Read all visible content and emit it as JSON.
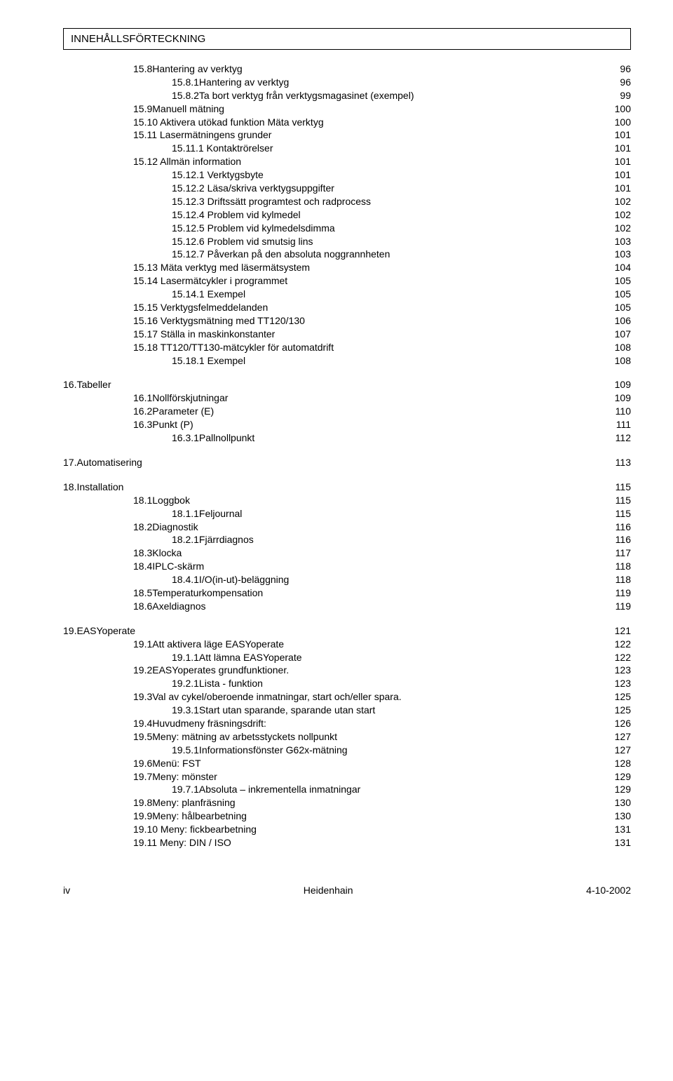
{
  "header": "INNEHÅLLSFÖRTECKNING",
  "entries": [
    {
      "indent": "ind1",
      "text": "15.8Hantering av verktyg",
      "page": "96"
    },
    {
      "indent": "ind2",
      "text": "15.8.1Hantering av verktyg",
      "page": "96"
    },
    {
      "indent": "ind2",
      "text": "15.8.2Ta bort verktyg från verktygsmagasinet (exempel)",
      "page": "99"
    },
    {
      "indent": "ind1",
      "text": "15.9Manuell mätning",
      "page": "100"
    },
    {
      "indent": "ind1",
      "text": "15.10        Aktivera utökad funktion Mäta verktyg",
      "page": "100"
    },
    {
      "indent": "ind1",
      "text": "15.11        Lasermätningens grunder",
      "page": "101"
    },
    {
      "indent": "ind2",
      "text": "15.11.1     Kontaktrörelser",
      "page": "101"
    },
    {
      "indent": "ind1",
      "text": "15.12        Allmän information",
      "page": "101"
    },
    {
      "indent": "ind2",
      "text": "15.12.1     Verktygsbyte",
      "page": "101"
    },
    {
      "indent": "ind2",
      "text": "15.12.2     Läsa/skriva verktygsuppgifter",
      "page": "101"
    },
    {
      "indent": "ind2",
      "text": "15.12.3     Driftssätt programtest och radprocess",
      "page": "102"
    },
    {
      "indent": "ind2",
      "text": "15.12.4     Problem vid kylmedel",
      "page": "102"
    },
    {
      "indent": "ind2",
      "text": "15.12.5     Problem vid kylmedelsdimma",
      "page": "102"
    },
    {
      "indent": "ind2",
      "text": "15.12.6     Problem vid smutsig lins",
      "page": "103"
    },
    {
      "indent": "ind2",
      "text": "15.12.7     Påverkan på den absoluta noggrannheten",
      "page": "103"
    },
    {
      "indent": "ind1",
      "text": "15.13        Mäta verktyg med  läsermätsystem",
      "page": "104"
    },
    {
      "indent": "ind1",
      "text": "15.14        Lasermätcykler i programmet",
      "page": "105"
    },
    {
      "indent": "ind2",
      "text": "15.14.1     Exempel",
      "page": "105"
    },
    {
      "indent": "ind1",
      "text": "15.15        Verktygsfelmeddelanden",
      "page": "105"
    },
    {
      "indent": "ind1",
      "text": "15.16        Verktygsmätning med TT120/130",
      "page": "106"
    },
    {
      "indent": "ind1",
      "text": "15.17        Ställa in maskinkonstanter",
      "page": "107"
    },
    {
      "indent": "ind1",
      "text": "15.18        TT120/TT130-mätcykler för automatdrift",
      "page": "108"
    },
    {
      "indent": "ind2",
      "text": "15.18.1     Exempel",
      "page": "108"
    },
    {
      "indent": "section",
      "text": "16.Tabeller",
      "page": "109"
    },
    {
      "indent": "ind1",
      "text": "16.1Nollförskjutningar",
      "page": "109"
    },
    {
      "indent": "ind1",
      "text": "16.2Parameter (E)",
      "page": "110"
    },
    {
      "indent": "ind1",
      "text": "16.3Punkt (P)",
      "page": "111"
    },
    {
      "indent": "ind2",
      "text": "16.3.1Pallnollpunkt",
      "page": "112"
    },
    {
      "indent": "section",
      "text": "17.Automatisering",
      "page": "113"
    },
    {
      "indent": "section",
      "text": "18.Installation",
      "page": "115"
    },
    {
      "indent": "ind1",
      "text": "18.1Loggbok",
      "page": "115"
    },
    {
      "indent": "ind2",
      "text": "18.1.1Feljournal",
      "page": "115"
    },
    {
      "indent": "ind1",
      "text": "18.2Diagnostik",
      "page": "116"
    },
    {
      "indent": "ind2",
      "text": "18.2.1Fjärrdiagnos",
      "page": "116"
    },
    {
      "indent": "ind1",
      "text": "18.3Klocka",
      "page": "117"
    },
    {
      "indent": "ind1",
      "text": "18.4IPLC-skärm",
      "page": "118"
    },
    {
      "indent": "ind2",
      "text": "18.4.1I/O(in-ut)-beläggning",
      "page": "118"
    },
    {
      "indent": "ind1",
      "text": "18.5Temperaturkompensation",
      "page": "119"
    },
    {
      "indent": "ind1",
      "text": "18.6Axeldiagnos",
      "page": "119"
    },
    {
      "indent": "section",
      "text": "19.EASYoperate",
      "page": "121"
    },
    {
      "indent": "ind1",
      "text": "19.1Att aktivera läge EASYoperate",
      "page": "122"
    },
    {
      "indent": "ind2",
      "text": "19.1.1Att lämna EASYoperate",
      "page": "122"
    },
    {
      "indent": "ind1",
      "text": "19.2EASYoperates grundfunktioner.",
      "page": "123"
    },
    {
      "indent": "ind2",
      "text": "19.2.1Lista - funktion",
      "page": "123"
    },
    {
      "indent": "ind1",
      "text": "19.3Val av cykel/oberoende inmatningar, start och/eller spara.",
      "page": "125"
    },
    {
      "indent": "ind2",
      "text": "19.3.1Start utan sparande, sparande utan start",
      "page": "125"
    },
    {
      "indent": "ind1",
      "text": "19.4Huvudmeny fräsningsdrift:",
      "page": "126"
    },
    {
      "indent": "ind1",
      "text": "19.5Meny: mätning av arbetsstyckets nollpunkt",
      "page": "127"
    },
    {
      "indent": "ind2",
      "text": "19.5.1Informationsfönster G62x-mätning",
      "page": "127"
    },
    {
      "indent": "ind1",
      "text": "19.6Menü: FST",
      "page": "128"
    },
    {
      "indent": "ind1",
      "text": "19.7Meny: mönster",
      "page": "129"
    },
    {
      "indent": "ind2",
      "text": "19.7.1Absoluta – inkrementella inmatningar",
      "page": "129"
    },
    {
      "indent": "ind1",
      "text": "19.8Meny: planfräsning",
      "page": "130"
    },
    {
      "indent": "ind1",
      "text": "19.9Meny: hålbearbetning",
      "page": "130"
    },
    {
      "indent": "ind1",
      "text": "19.10        Meny: fickbearbetning",
      "page": "131"
    },
    {
      "indent": "ind1",
      "text": "19.11        Meny: DIN / ISO",
      "page": "131"
    }
  ],
  "footer": {
    "left": "iv",
    "center": "Heidenhain",
    "right": "4-10-2002"
  }
}
